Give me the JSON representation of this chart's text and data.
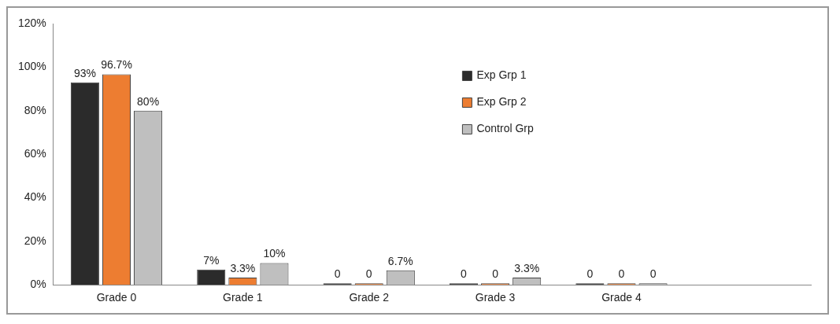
{
  "chart_data": {
    "type": "bar",
    "categories": [
      "Grade 0",
      "Grade 1",
      "Grade 2",
      "Grade 3",
      "Grade 4",
      null
    ],
    "series": [
      {
        "name": "Exp Grp 1",
        "color": "#2b2b2b",
        "values": [
          93,
          7,
          0,
          0,
          0,
          null
        ],
        "value_labels": [
          "93%",
          "7%",
          "0",
          "0",
          "0",
          null
        ]
      },
      {
        "name": "Exp Grp 2",
        "color": "#ed7d31",
        "values": [
          96.7,
          3.3,
          0,
          0,
          0,
          null
        ],
        "value_labels": [
          "96.7%",
          "3.3%",
          "0",
          "0",
          "0",
          null
        ]
      },
      {
        "name": "Control Grp",
        "color": "#bfbfbf",
        "values": [
          80,
          10,
          6.7,
          3.3,
          0,
          null
        ],
        "value_labels": [
          "80%",
          "10%",
          "6.7%",
          "3.3%",
          "0",
          null
        ]
      }
    ],
    "ylim": [
      0,
      120
    ],
    "yticks": [
      {
        "value": 0,
        "label": "0%"
      },
      {
        "value": 20,
        "label": "20%"
      },
      {
        "value": 40,
        "label": "40%"
      },
      {
        "value": 60,
        "label": "60%"
      },
      {
        "value": 80,
        "label": "80%"
      },
      {
        "value": 100,
        "label": "100%"
      },
      {
        "value": 120,
        "label": "120%"
      }
    ],
    "legend": "right"
  }
}
